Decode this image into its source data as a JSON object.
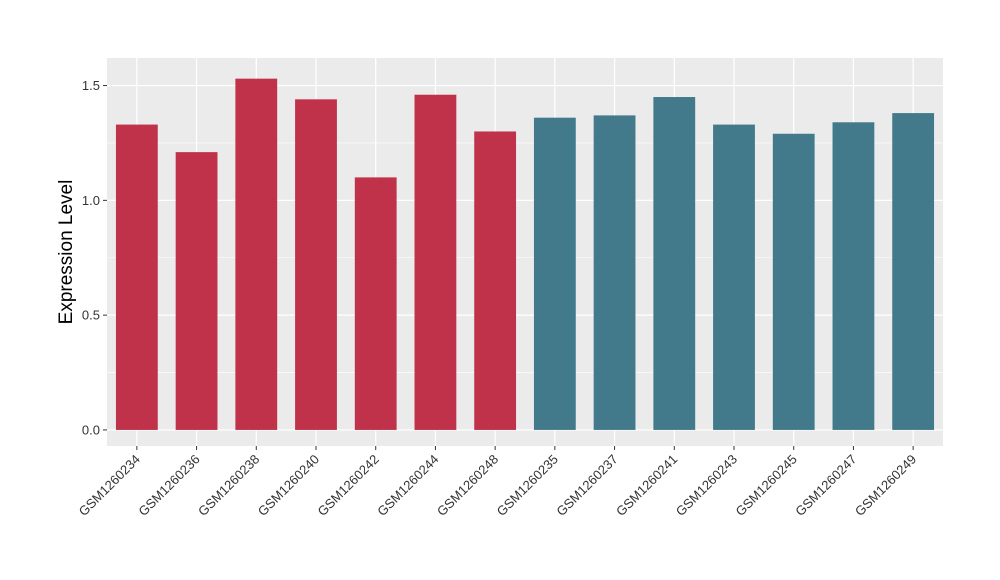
{
  "chart_data": {
    "type": "bar",
    "xlabel": "",
    "ylabel": "Expression Level",
    "ylim": [
      -0.07,
      1.62
    ],
    "yticks": [
      0.0,
      0.5,
      1.0,
      1.5
    ],
    "ytick_labels": [
      "0.0",
      "0.5",
      "1.0",
      "1.5"
    ],
    "grid": true,
    "categories": [
      "GSM1260234",
      "GSM1260236",
      "GSM1260238",
      "GSM1260240",
      "GSM1260242",
      "GSM1260244",
      "GSM1260248",
      "GSM1260235",
      "GSM1260237",
      "GSM1260241",
      "GSM1260243",
      "GSM1260245",
      "GSM1260247",
      "GSM1260249"
    ],
    "values": [
      1.33,
      1.21,
      1.53,
      1.44,
      1.1,
      1.46,
      1.3,
      1.36,
      1.37,
      1.45,
      1.33,
      1.29,
      1.34,
      1.38
    ],
    "groups": [
      {
        "count": 7,
        "color": "#c0314a"
      },
      {
        "count": 7,
        "color": "#427a8b"
      }
    ],
    "panel_background": "#ebebeb",
    "gridline_color": "#ffffff"
  }
}
